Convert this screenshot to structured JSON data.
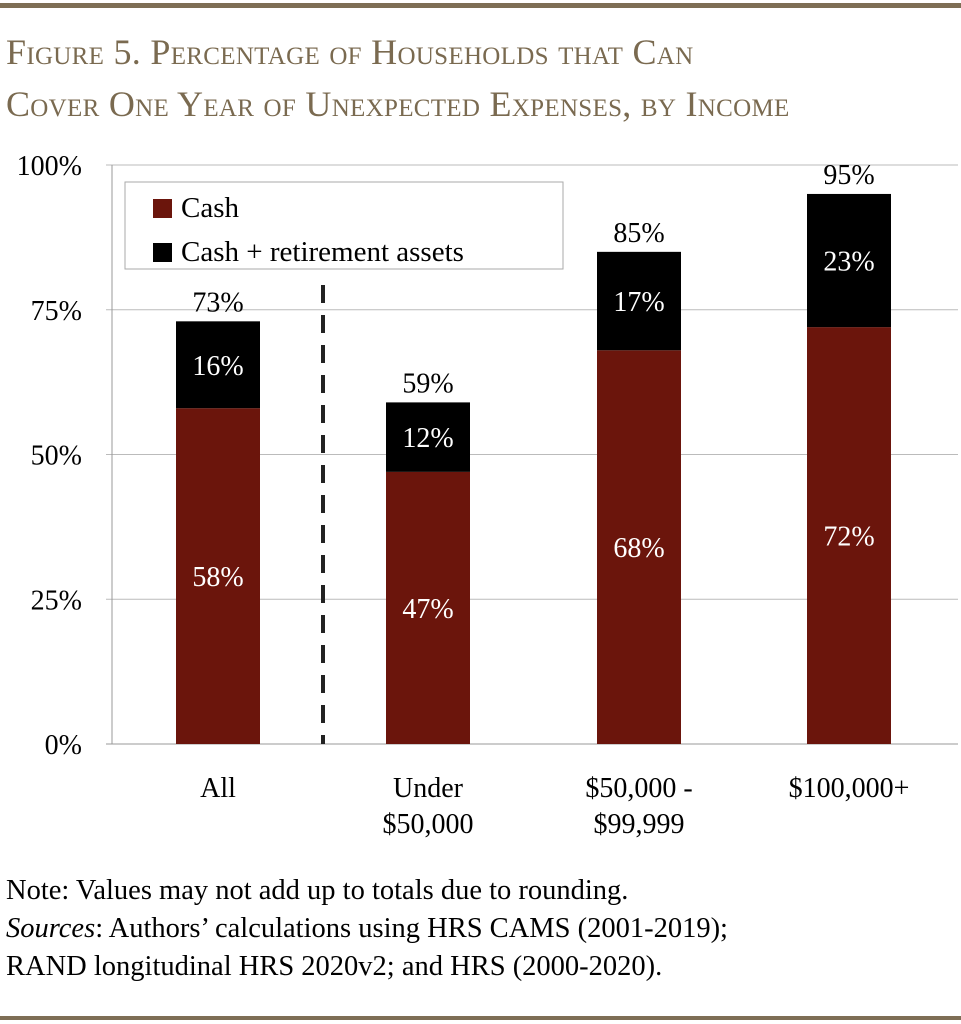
{
  "title_line1": "Figure 5. Percentage of Households that Can",
  "title_line2": "Cover One Year of Unexpected Expenses, by Income",
  "colors": {
    "rule": "#7e6e55",
    "title": "#7a6a50",
    "cash": "#6b150c",
    "retirement": "#000000"
  },
  "chart_data": {
    "type": "bar",
    "stacked": true,
    "title": "Figure 5. Percentage of Households that Can Cover One Year of Unexpected Expenses, by Income",
    "categories": [
      [
        "All"
      ],
      [
        "Under",
        "$50,000"
      ],
      [
        "$50,000 -",
        "$99,999"
      ],
      [
        "$100,000+"
      ]
    ],
    "series": [
      {
        "name": "Cash",
        "color": "#6b150c",
        "values": [
          58,
          47,
          68,
          72
        ],
        "labels": [
          "58%",
          "47%",
          "68%",
          "72%"
        ]
      },
      {
        "name": "Cash + retirement assets",
        "color": "#000000",
        "values": [
          16,
          12,
          17,
          23
        ],
        "labels": [
          "16%",
          "12%",
          "17%",
          "23%"
        ]
      }
    ],
    "totals": [
      73,
      59,
      85,
      95
    ],
    "total_labels": [
      "73%",
      "59%",
      "85%",
      "95%"
    ],
    "yticks": [
      "0%",
      "25%",
      "50%",
      "75%",
      "100%"
    ],
    "ylim": [
      0,
      100
    ],
    "grid": true,
    "legend": "top-left",
    "separator": "dashed line after All"
  },
  "note": "Note: Values may not add up to totals due to rounding.",
  "sources_label": "Sources",
  "sources_line1": ": Authors’ calculations using HRS CAMS (2001-2019);",
  "sources_line2": "RAND longitudinal HRS 2020v2; and HRS (2000-2020)."
}
